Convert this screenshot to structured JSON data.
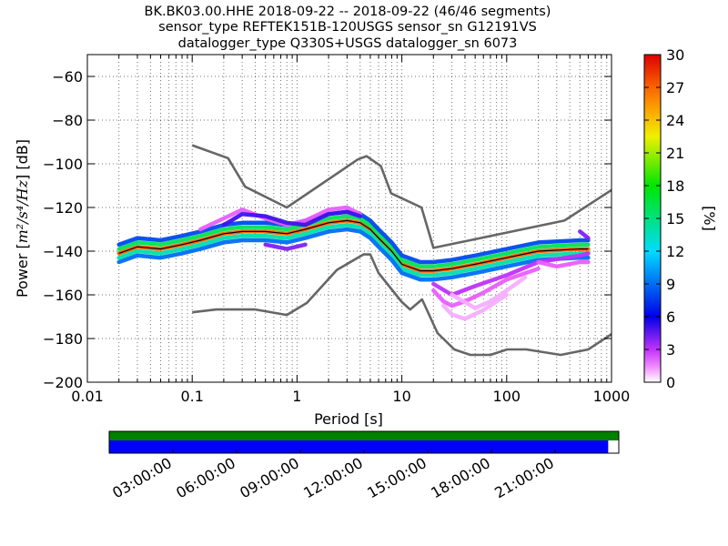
{
  "chart_data": {
    "type": "heatmap",
    "title_lines": [
      "BK.BK03.00.HHE   2018-09-22 -- 2018-09-22  (46/46 segments)",
      "sensor_type REFTEK151B-120USGS sensor_sn G12191VS",
      "datalogger_type Q330S+USGS datalogger_sn 6073"
    ],
    "xlabel": "Period [s]",
    "ylabel_prefix": "Power [",
    "ylabel_units": "m²/s⁴/Hz",
    "ylabel_suffix": "] [dB]",
    "x_scale": "log",
    "xlim": [
      0.01,
      1000
    ],
    "ylim": [
      -200,
      -50
    ],
    "x_ticks": [
      0.01,
      0.1,
      1,
      10,
      100,
      1000
    ],
    "x_tick_labels": [
      "0.01",
      "0.1",
      "1",
      "10",
      "100",
      "1000"
    ],
    "y_ticks": [
      -200,
      -180,
      -160,
      -140,
      -120,
      -100,
      -80,
      -60
    ],
    "y_tick_labels": [
      "−200",
      "−180",
      "−160",
      "−140",
      "−120",
      "−100",
      "−80",
      "−60"
    ],
    "grid": true,
    "colorbar": {
      "label": "[%]",
      "range": [
        0,
        30
      ],
      "ticks": [
        0,
        3,
        6,
        9,
        12,
        15,
        18,
        21,
        24,
        27,
        30
      ],
      "tick_labels": [
        "0",
        "3",
        "6",
        "9",
        "12",
        "15",
        "18",
        "21",
        "24",
        "27",
        "30"
      ]
    },
    "noise_model_high": {
      "x": [
        0.1,
        0.22,
        0.32,
        0.8,
        3.8,
        4.6,
        6.3,
        7.9,
        15.4,
        20,
        354.8,
        1000
      ],
      "y": [
        -91.5,
        -97.4,
        -110.5,
        -120,
        -98,
        -96.5,
        -101,
        -113.5,
        -120,
        -138.5,
        -126,
        -112
      ]
    },
    "noise_model_low": {
      "x": [
        0.1,
        0.17,
        0.4,
        0.8,
        1.24,
        2.4,
        4.3,
        5,
        6,
        10,
        12,
        15.6,
        21.9,
        31.6,
        45,
        70,
        101,
        154,
        328,
        600,
        1000
      ],
      "y": [
        -168,
        -166.7,
        -166.7,
        -169.2,
        -163.7,
        -148.6,
        -141.5,
        -141.5,
        -150,
        -163.3,
        -166.7,
        -162.1,
        -177.5,
        -185,
        -187.5,
        -187.5,
        -185,
        -185,
        -187.5,
        -185,
        -178
      ]
    },
    "mean_psd": {
      "x": [
        0.02,
        0.03,
        0.05,
        0.08,
        0.12,
        0.2,
        0.3,
        0.5,
        0.8,
        1.2,
        2,
        3,
        4,
        5,
        6,
        8,
        10,
        15,
        20,
        30,
        50,
        100,
        200,
        500,
        600
      ],
      "y": [
        -141,
        -138,
        -139,
        -137,
        -135,
        -132,
        -131,
        -131,
        -132,
        -130,
        -127,
        -126,
        -127,
        -130,
        -134,
        -140,
        -146,
        -149,
        -149,
        -148,
        -146,
        -143,
        -140,
        -139,
        -139
      ]
    },
    "histogram": {
      "rows": [
        {
          "x": [
            0.02,
            0.03,
            0.05,
            0.08,
            0.12,
            0.2,
            0.3,
            0.5,
            0.8,
            1.2,
            2,
            3,
            4,
            5,
            6,
            8,
            10,
            15,
            20,
            30,
            50,
            100,
            200,
            500,
            600
          ],
          "y": [
            -141,
            -138,
            -139,
            -137,
            -135,
            -132,
            -131,
            -131,
            -132,
            -130,
            -127,
            -126,
            -127,
            -130,
            -134,
            -140,
            -146,
            -149,
            -149,
            -148,
            -146,
            -143,
            -140,
            -139,
            -139
          ],
          "value": 27
        },
        {
          "x": [
            0.02,
            0.03,
            0.05,
            0.08,
            0.12,
            0.2,
            0.3,
            0.5,
            0.8,
            1.2,
            2,
            3,
            4,
            5,
            6,
            8,
            10,
            15,
            20,
            30,
            50,
            100,
            200,
            500,
            600
          ],
          "y": [
            -143,
            -140,
            -141,
            -139,
            -137,
            -134,
            -133,
            -133,
            -134,
            -132,
            -129,
            -128,
            -129,
            -132,
            -136,
            -142,
            -148,
            -151,
            -151,
            -150,
            -148,
            -145,
            -142,
            -141,
            -141
          ],
          "value": 14
        },
        {
          "x": [
            0.02,
            0.03,
            0.05,
            0.08,
            0.12,
            0.2,
            0.3,
            0.5,
            0.8,
            1.2,
            2,
            3,
            4,
            5,
            6,
            8,
            10,
            15,
            20,
            30,
            50,
            100,
            200,
            500,
            600
          ],
          "y": [
            -139,
            -136,
            -137,
            -135,
            -133,
            -130,
            -129,
            -129,
            -130,
            -128,
            -125,
            -124,
            -125,
            -128,
            -132,
            -138,
            -144,
            -147,
            -147,
            -146,
            -144,
            -141,
            -138,
            -137,
            -137
          ],
          "value": 16
        },
        {
          "x": [
            0.02,
            0.03,
            0.05,
            0.08,
            0.12,
            0.2,
            0.3,
            0.5,
            0.8,
            1.2,
            2,
            3,
            4,
            5,
            6,
            8,
            10,
            15,
            20,
            30,
            50,
            100,
            200,
            500,
            600
          ],
          "y": [
            -145,
            -142,
            -143,
            -141,
            -139,
            -136,
            -135,
            -135,
            -136,
            -134,
            -131,
            -130,
            -131,
            -134,
            -138,
            -144,
            -150,
            -153,
            -153,
            -152,
            -150,
            -147,
            -144,
            -143,
            -143
          ],
          "value": 9
        },
        {
          "x": [
            0.02,
            0.03,
            0.05,
            0.08,
            0.12,
            0.2,
            0.3,
            0.5,
            0.8,
            1.2,
            2,
            3,
            4,
            5,
            6,
            8,
            10,
            15,
            20,
            30,
            50,
            100,
            200,
            500,
            600
          ],
          "y": [
            -137,
            -134,
            -135,
            -133,
            -131,
            -128,
            -127,
            -127,
            -128,
            -126,
            -123,
            -122,
            -123,
            -126,
            -130,
            -136,
            -142,
            -145,
            -145,
            -144,
            -142,
            -139,
            -136,
            -135,
            -135
          ],
          "value": 8
        },
        {
          "x": [
            0.12,
            0.2,
            0.3,
            0.5,
            0.8,
            1.2,
            2,
            3,
            4
          ],
          "y": [
            -130,
            -125,
            -121,
            -125,
            -128,
            -126,
            -121,
            -120,
            -123
          ],
          "value": 2
        },
        {
          "x": [
            0.2,
            0.3,
            0.5,
            0.8,
            1.2,
            2,
            3,
            4
          ],
          "y": [
            -128,
            -123,
            -124,
            -127,
            -128,
            -123,
            -122,
            -124
          ],
          "value": 5
        },
        {
          "x": [
            0.5,
            0.8,
            1.2
          ],
          "y": [
            -137,
            -139,
            -137
          ],
          "value": 4
        },
        {
          "x": [
            20,
            30,
            50,
            100,
            200,
            500,
            600
          ],
          "y": [
            -155,
            -160,
            -156,
            -151,
            -145,
            -142,
            -141
          ],
          "value": 3
        },
        {
          "x": [
            20,
            25,
            30,
            40,
            60,
            100,
            200
          ],
          "y": [
            -158,
            -163,
            -165,
            -163,
            -159,
            -153,
            -148
          ],
          "value": 2
        },
        {
          "x": [
            25,
            30,
            40,
            60,
            100
          ],
          "y": [
            -165,
            -169,
            -171,
            -167,
            -160
          ],
          "value": 1
        },
        {
          "x": [
            30,
            50,
            70,
            100,
            150
          ],
          "y": [
            -160,
            -166,
            -163,
            -158,
            -152
          ],
          "value": 1
        },
        {
          "x": [
            200,
            300,
            500,
            600
          ],
          "y": [
            -145,
            -147,
            -145,
            -145
          ],
          "value": 2
        },
        {
          "x": [
            500,
            600
          ],
          "y": [
            -131,
            -134
          ],
          "value": 4
        }
      ]
    },
    "time_axis": {
      "tick_labels": [
        "03:00:00",
        "06:00:00",
        "09:00:00",
        "12:00:00",
        "15:00:00",
        "18:00:00",
        "21:00:00"
      ],
      "tick_hours": [
        3,
        6,
        9,
        12,
        15,
        18,
        21
      ],
      "range_hours": [
        0,
        24
      ],
      "data_coverage_hours": [
        0,
        24
      ],
      "psd_coverage_hours": [
        0,
        23.5
      ],
      "colors": {
        "coverage": "#008000",
        "psd": "#0000ff"
      }
    }
  },
  "colors": {
    "noise_model": "#666666",
    "mean": "#000000"
  }
}
